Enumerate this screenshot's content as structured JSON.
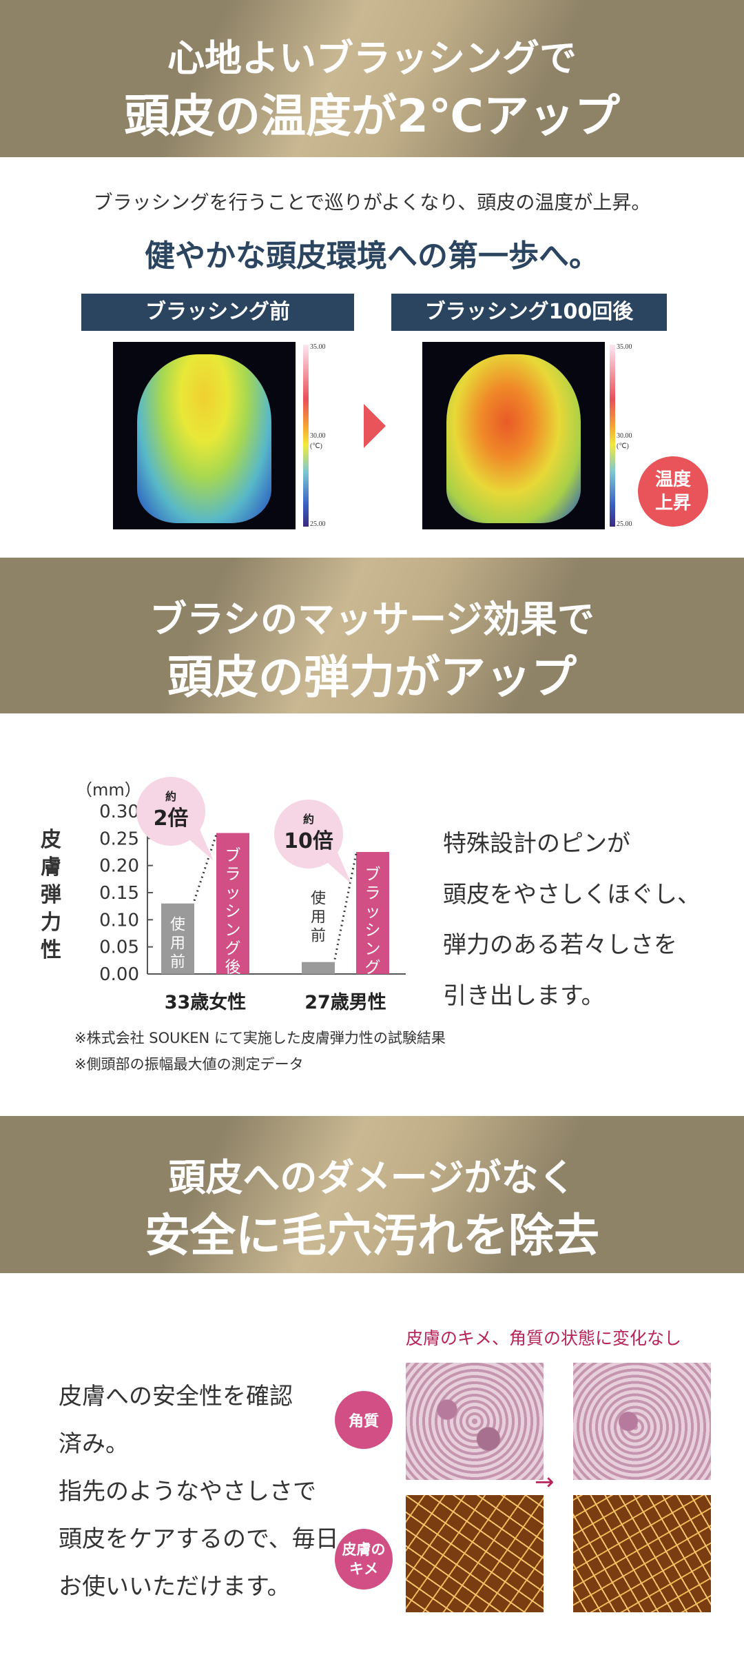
{
  "section1": {
    "title_line1": "心地よいブラッシングで",
    "title_line2": "頭皮の温度が2℃アップ",
    "intro": "ブラッシングを行うことで巡りがよくなり、頭皮の温度が上昇。",
    "headline": "健やかな頭皮環境への第一歩へ。",
    "before_label": "ブラッシング前",
    "after_label": "ブラッシング100回後",
    "scale_top": "35.00",
    "scale_mid": "30.00",
    "scale_unit": "(℃)",
    "scale_bottom": "25.00",
    "badge": "温度上昇",
    "badge_line1": "温度",
    "badge_line2": "上昇"
  },
  "section2": {
    "title_line1": "ブラシのマッサージ効果で",
    "title_line2": "頭皮の弾力がアップ",
    "description": [
      "特殊設計のピンが",
      "頭皮をやさしくほぐし、",
      "弾力のある若々しさを",
      "引き出します。"
    ],
    "footnotes": [
      "※株式会社 SOUKEN にて実施した皮膚弾力性の試験結果",
      "※側頭部の振幅最大値の測定データ"
    ]
  },
  "chart_data": {
    "type": "bar",
    "ylabel": "皮膚弾力性",
    "unit": "（mm）",
    "categories": [
      "33歳女性",
      "27歳男性"
    ],
    "series": [
      {
        "name": "使用前",
        "values": [
          0.13,
          0.022
        ],
        "color": "#9a9a9a"
      },
      {
        "name": "ブラッシング後",
        "values": [
          0.26,
          0.225
        ],
        "color": "#d14f85"
      }
    ],
    "ylim": [
      0,
      0.3
    ],
    "yticks": [
      "0.00",
      "0.05",
      "0.10",
      "0.15",
      "0.20",
      "0.25",
      "0.30"
    ],
    "annotations": [
      {
        "prefix": "約",
        "value": "2倍"
      },
      {
        "prefix": "約",
        "value": "10倍"
      }
    ]
  },
  "section3": {
    "title_line1": "頭皮へのダメージがなく",
    "title_line2": "安全に毛穴汚れを除去",
    "lines": [
      "皮膚への安全性を確認",
      "済み。",
      "指先のようなやさしさで",
      "頭皮をケアするので、毎日",
      "お使いいただけます。"
    ],
    "caption": "皮膚のキメ、角質の状態に変化なし",
    "badge_keratin": "角質",
    "badge_texture_line1": "皮膚の",
    "badge_texture_line2": "キメ"
  },
  "colors": {
    "gold": "#8e8267",
    "navy": "#2b4560",
    "red": "#e8545a",
    "pink": "#d14f85"
  }
}
